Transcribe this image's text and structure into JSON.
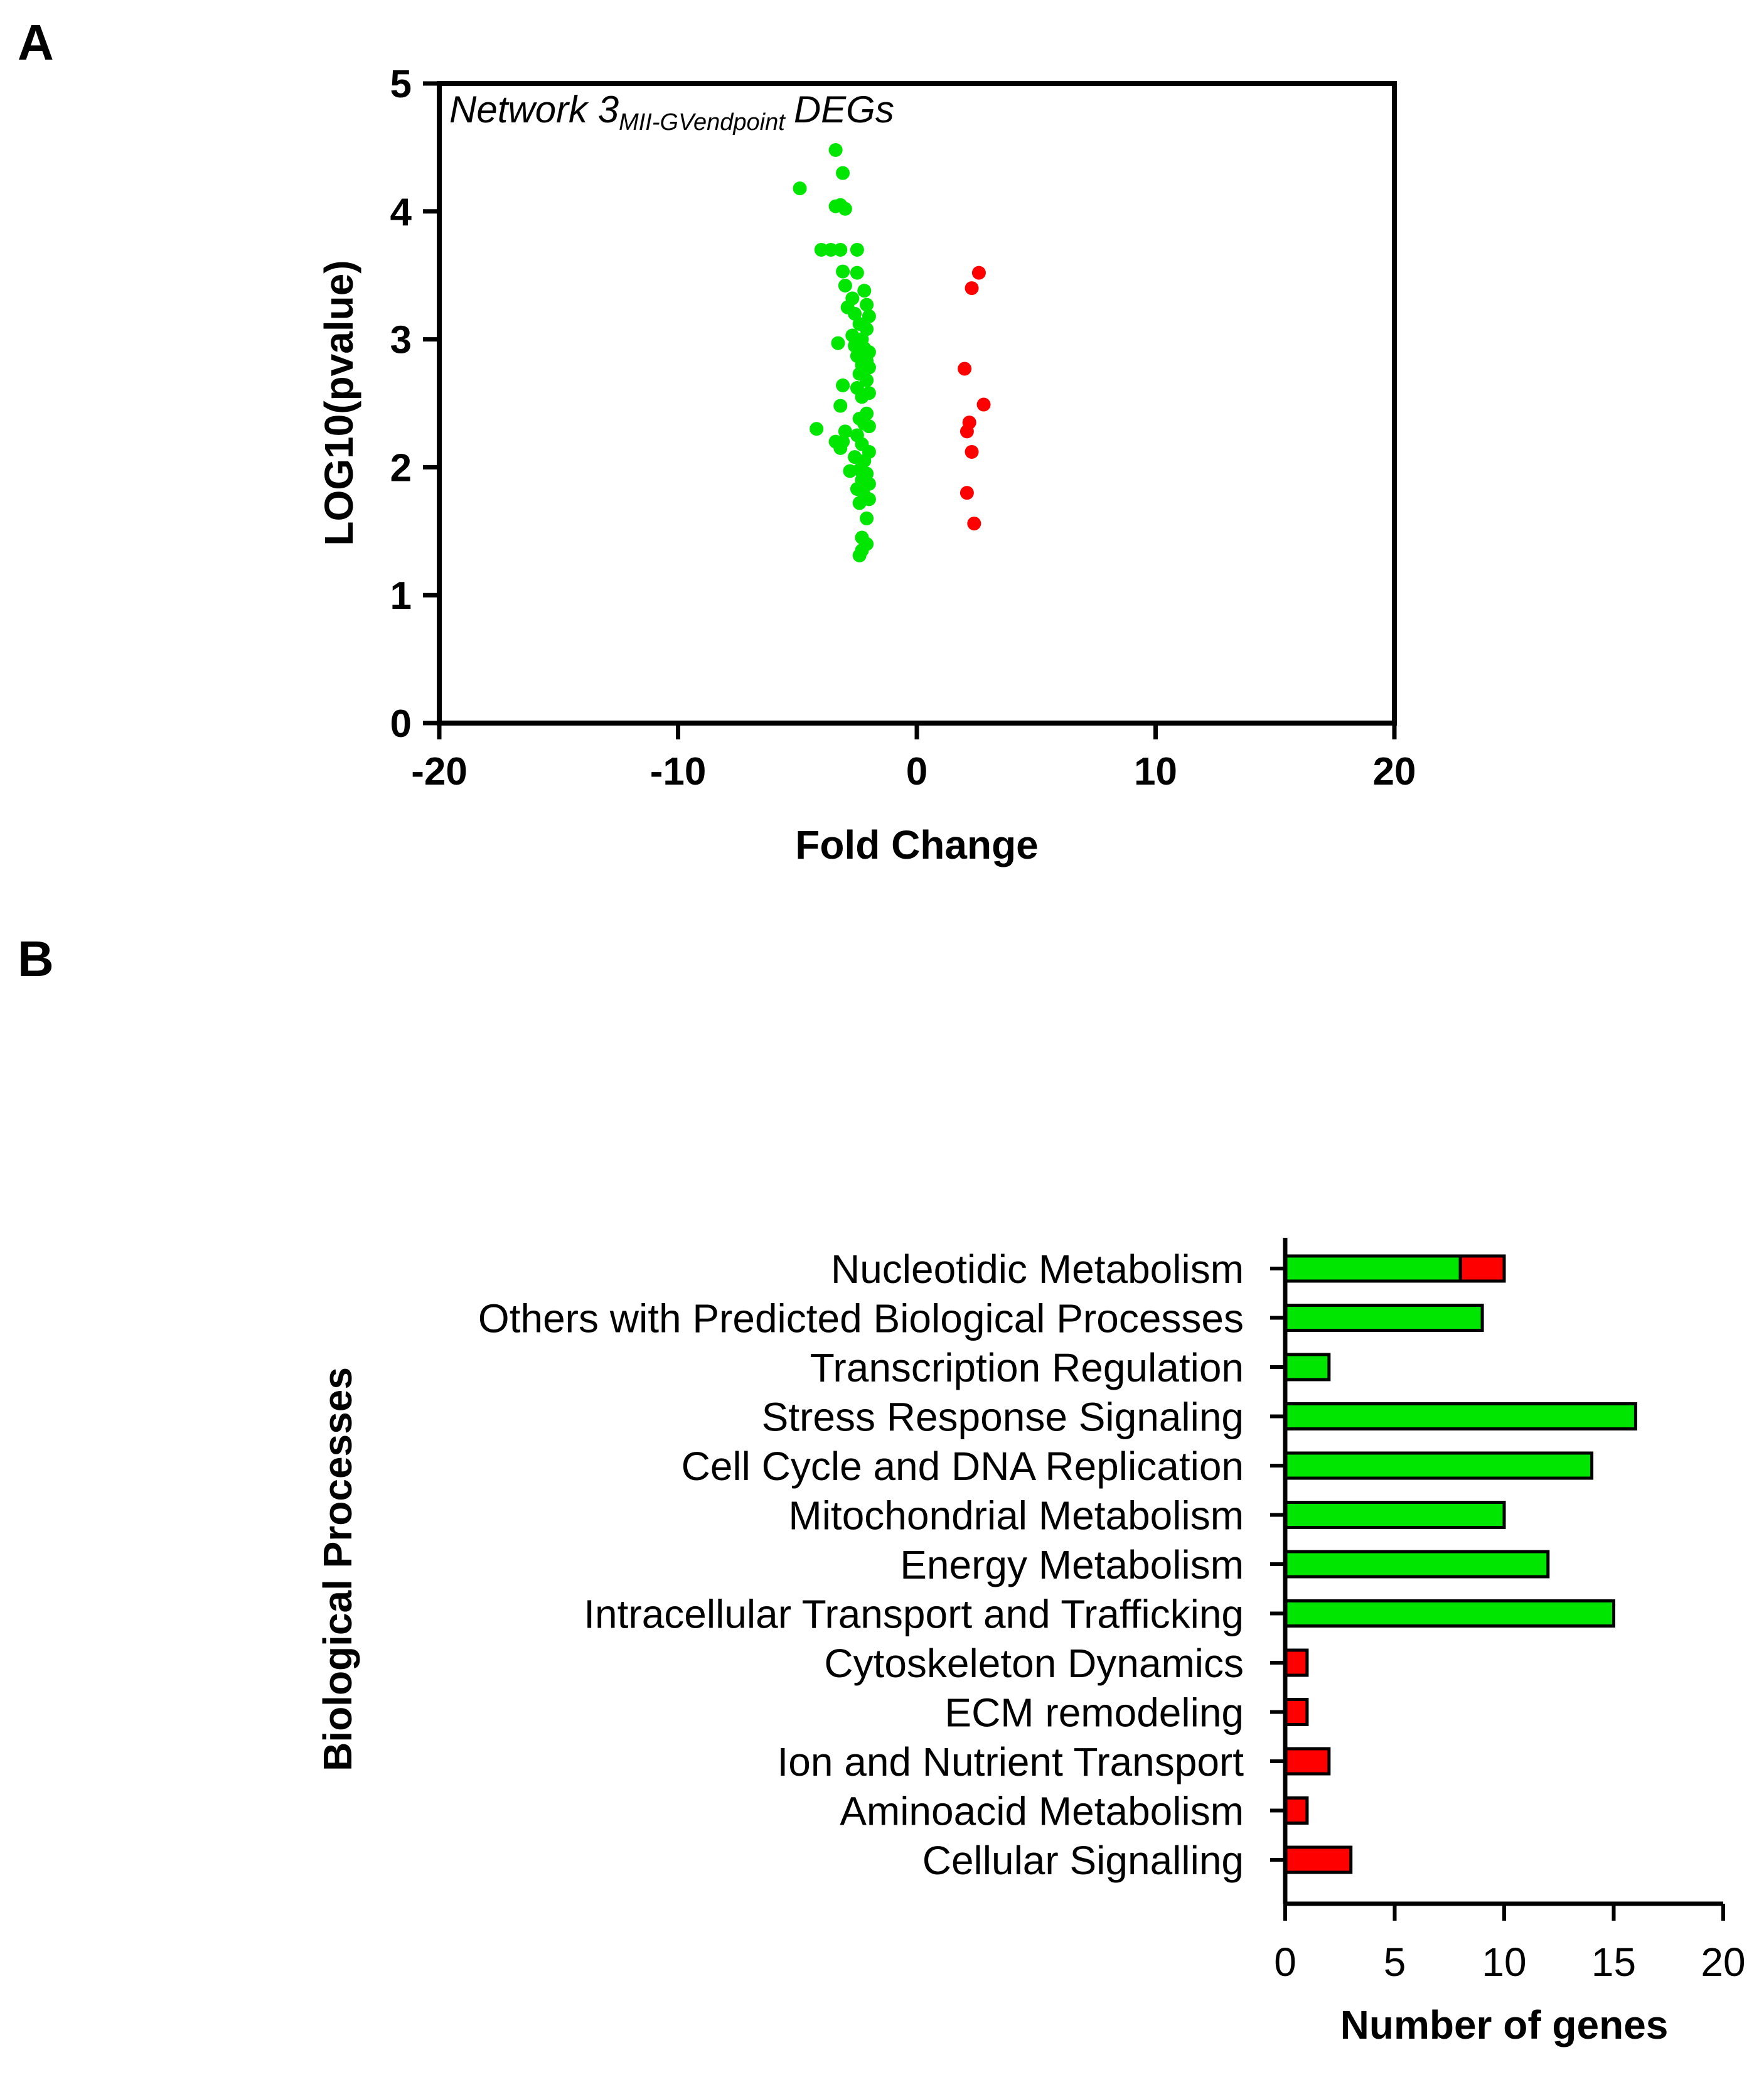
{
  "panel_a_label": "A",
  "panel_b_label": "B",
  "chart_data": [
    {
      "type": "scatter",
      "title_main": "Network 3",
      "title_subscript": "MII-GVendpoint",
      "title_suffix": "DEGs",
      "xlabel": "Fold Change",
      "ylabel": "LOG10(pvalue)",
      "xlim": [
        -20,
        20
      ],
      "ylim": [
        0,
        5
      ],
      "xticks": [
        "-20",
        "-10",
        "0",
        "10",
        "20"
      ],
      "yticks": [
        "0",
        "1",
        "2",
        "3",
        "4",
        "5"
      ],
      "grid": false,
      "series": [
        {
          "color": "#00e600",
          "points": [
            [
              -3.4,
              4.48
            ],
            [
              -4.9,
              4.18
            ],
            [
              -3.1,
              4.3
            ],
            [
              -3.4,
              4.04
            ],
            [
              -3.2,
              4.05
            ],
            [
              -3.0,
              4.02
            ],
            [
              -4.0,
              3.7
            ],
            [
              -3.6,
              3.7
            ],
            [
              -3.2,
              3.7
            ],
            [
              -2.5,
              3.7
            ],
            [
              -3.1,
              3.53
            ],
            [
              -2.5,
              3.52
            ],
            [
              -3.0,
              3.42
            ],
            [
              -2.2,
              3.38
            ],
            [
              -2.7,
              3.32
            ],
            [
              -2.9,
              3.25
            ],
            [
              -2.1,
              3.27
            ],
            [
              -2.6,
              3.2
            ],
            [
              -2.0,
              3.18
            ],
            [
              -2.4,
              3.12
            ],
            [
              -2.1,
              3.08
            ],
            [
              -2.7,
              3.03
            ],
            [
              -2.3,
              3.0
            ],
            [
              -3.3,
              2.97
            ],
            [
              -2.6,
              2.95
            ],
            [
              -2.2,
              2.93
            ],
            [
              -2.0,
              2.9
            ],
            [
              -2.5,
              2.87
            ],
            [
              -2.1,
              2.83
            ],
            [
              -2.3,
              2.8
            ],
            [
              -2.0,
              2.78
            ],
            [
              -2.4,
              2.73
            ],
            [
              -2.1,
              2.68
            ],
            [
              -3.1,
              2.64
            ],
            [
              -2.5,
              2.62
            ],
            [
              -2.0,
              2.58
            ],
            [
              -2.3,
              2.55
            ],
            [
              -3.2,
              2.48
            ],
            [
              -2.1,
              2.42
            ],
            [
              -2.4,
              2.38
            ],
            [
              -2.2,
              2.34
            ],
            [
              -2.0,
              2.32
            ],
            [
              -4.2,
              2.3
            ],
            [
              -3.0,
              2.28
            ],
            [
              -2.5,
              2.25
            ],
            [
              -3.4,
              2.2
            ],
            [
              -3.1,
              2.2
            ],
            [
              -2.3,
              2.18
            ],
            [
              -3.2,
              2.15
            ],
            [
              -2.0,
              2.12
            ],
            [
              -2.6,
              2.08
            ],
            [
              -2.2,
              2.05
            ],
            [
              -2.8,
              1.97
            ],
            [
              -2.4,
              1.98
            ],
            [
              -2.1,
              1.95
            ],
            [
              -2.3,
              1.9
            ],
            [
              -2.0,
              1.87
            ],
            [
              -2.5,
              1.83
            ],
            [
              -2.2,
              1.78
            ],
            [
              -2.0,
              1.75
            ],
            [
              -2.4,
              1.72
            ],
            [
              -2.1,
              1.6
            ],
            [
              -2.3,
              1.45
            ],
            [
              -2.1,
              1.4
            ],
            [
              -2.3,
              1.35
            ],
            [
              -2.4,
              1.31
            ]
          ]
        },
        {
          "color": "#ff0000",
          "points": [
            [
              2.6,
              3.52
            ],
            [
              2.3,
              3.4
            ],
            [
              2.0,
              2.77
            ],
            [
              2.8,
              2.49
            ],
            [
              2.2,
              2.35
            ],
            [
              2.1,
              2.28
            ],
            [
              2.3,
              2.12
            ],
            [
              2.1,
              1.8
            ],
            [
              2.4,
              1.56
            ]
          ]
        }
      ]
    },
    {
      "type": "bar",
      "orientation": "horizontal",
      "stacked": true,
      "xlabel": "Number of genes",
      "ylabel": "Biological Processes",
      "xlim": [
        0,
        20
      ],
      "xticks": [
        "0",
        "5",
        "10",
        "15",
        "20"
      ],
      "categories": [
        "Nucleotidic Metabolism",
        "Others with Predicted Biological Processes",
        "Transcription Regulation",
        "Stress Response Signaling",
        "Cell Cycle and DNA Replication",
        "Mitochondrial Metabolism",
        "Energy Metabolism",
        "Intracellular Transport and Trafficking",
        "Cytoskeleton Dynamics",
        "ECM remodeling",
        "Ion and Nutrient Transport",
        "Aminoacid Metabolism",
        "Cellular Signalling"
      ],
      "series": [
        {
          "color": "#00e600",
          "values": [
            8,
            9,
            2,
            16,
            14,
            10,
            12,
            15,
            0,
            0,
            0,
            0,
            0
          ]
        },
        {
          "color": "#ff0000",
          "values": [
            2,
            0,
            0,
            0,
            0,
            0,
            0,
            0,
            1,
            1,
            2,
            1,
            3
          ]
        }
      ]
    }
  ]
}
